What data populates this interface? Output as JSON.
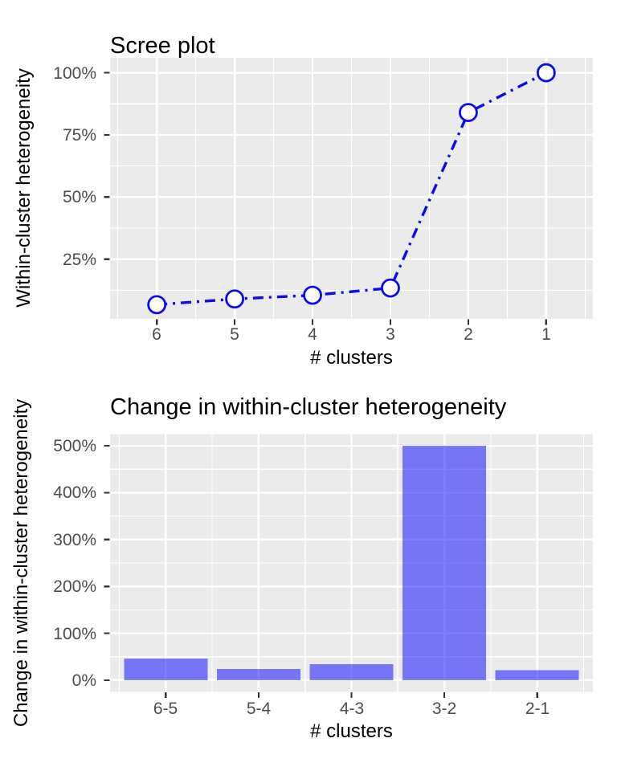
{
  "colors": {
    "background": "#FFFFFF",
    "panel_background": "#EBEBEB",
    "gridline": "#FFFFFF",
    "line": "#0B0BEE",
    "point_fill": "#FFFFFF",
    "bar_fill": "#0000FF",
    "bar_opacity": 0.5,
    "tick_mark": "#333333",
    "tick_label": "#4D4D4D",
    "text": "#000000"
  },
  "chart_data": [
    {
      "type": "line",
      "title": "Scree plot",
      "xlabel": "# clusters",
      "ylabel": "Within-cluster heterogeneity",
      "categories": [
        "6",
        "5",
        "4",
        "3",
        "2",
        "1"
      ],
      "values": [
        6.7,
        9,
        10.5,
        13.4,
        84,
        100
      ],
      "unit": "percent",
      "line_style": "dot-dash",
      "marker": "open-circle",
      "yticks": [
        25,
        50,
        75,
        100
      ],
      "ytick_labels": [
        "25%",
        "50%",
        "75%",
        "100%"
      ],
      "ylim": [
        1,
        106
      ],
      "grid": true,
      "legend": "none"
    },
    {
      "type": "bar",
      "title": "Change in within-cluster heterogeneity",
      "xlabel": "# clusters",
      "ylabel": "Change in within-cluster heterogeneity",
      "categories": [
        "6-5",
        "5-4",
        "4-3",
        "3-2",
        "2-1"
      ],
      "values": [
        46,
        24,
        34,
        500,
        21
      ],
      "unit": "percent",
      "yticks": [
        0,
        100,
        200,
        300,
        400,
        500
      ],
      "ytick_labels": [
        "0%",
        "100%",
        "200%",
        "300%",
        "400%",
        "500%"
      ],
      "ylim": [
        -25,
        525
      ],
      "grid": true,
      "legend": "none"
    }
  ]
}
